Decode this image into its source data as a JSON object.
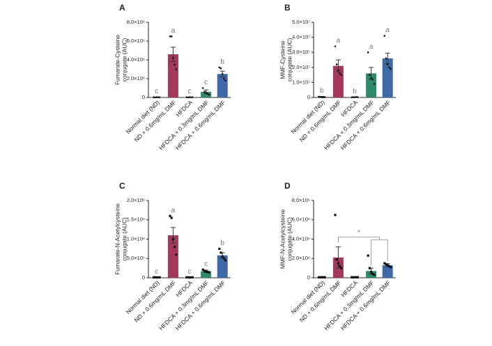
{
  "chart_data": [
    {
      "type": "bar",
      "panel": "A",
      "ylabel": [
        "Fumarate-Cysteine",
        "conjugate (AUC)"
      ],
      "categories": [
        "Normal diet (ND)",
        "ND + 0.6mg/mL DMF",
        "HFDCA",
        "HFDCA + 0.3mg/mL DMF",
        "HFDCA + 0.6mg/mL DMF"
      ],
      "values": [
        20000,
        4600000,
        20000,
        600000,
        2500000
      ],
      "errors": [
        5000,
        750000,
        5000,
        200000,
        300000
      ],
      "points": [
        [
          20000,
          10000,
          30000,
          15000,
          25000
        ],
        [
          6500000,
          6500000,
          4200000,
          3500000,
          3000000
        ],
        [
          20000,
          10000,
          30000,
          15000,
          25000
        ],
        [
          1000000,
          600000,
          500000,
          400000,
          300000
        ],
        [
          3200000,
          3100000,
          2500000,
          2000000,
          1800000
        ]
      ],
      "letters": [
        "c",
        "a",
        "c",
        "c",
        "b"
      ],
      "colors": [
        "#e07b2a",
        "#a3385a",
        "#d8833a",
        "#2e8b6a",
        "#3d6aa6"
      ],
      "marker": "circle",
      "ylim": [
        0,
        8000000
      ],
      "yticks": [
        0,
        {
          "value": 2000000,
          "label": "2.0×10⁶"
        },
        {
          "value": 4000000,
          "label": "4.0×10⁶"
        },
        {
          "value": 6000000,
          "label": "6.0×10⁶"
        },
        {
          "value": 8000000,
          "label": "8.0×10⁶"
        }
      ]
    },
    {
      "type": "bar",
      "panel": "B",
      "ylabel": [
        "MMF-Cysteine",
        "conjugate (AUC)"
      ],
      "categories": [
        "Normal diet (ND)",
        "ND + 0.6mg/mL DMF",
        "HFDCA",
        "HFDCA + 0.3mg/mL DMF",
        "HFDCA + 0.6mg/mL DMF"
      ],
      "values": [
        500000,
        21000000,
        200000,
        16000000,
        26000000
      ],
      "errors": [
        200000,
        4000000,
        100000,
        4000000,
        3500000
      ],
      "points": [
        [
          500000,
          300000,
          200000,
          100000,
          200000
        ],
        [
          34000000,
          22000000,
          18000000,
          16000000,
          15000000
        ],
        [
          100000,
          200000,
          100000,
          300000,
          200000
        ],
        [
          30000000,
          15000000,
          13000000,
          12000000,
          9000000
        ],
        [
          41000000,
          26000000,
          22000000,
          20000000,
          19000000
        ]
      ],
      "letters": [
        "b",
        "a",
        "b",
        "a",
        "a"
      ],
      "colors": [
        "#e07b2a",
        "#a3385a",
        "#d8833a",
        "#2e8b6a",
        "#3d6aa6"
      ],
      "marker": "circle",
      "ylim": [
        0,
        50000000
      ],
      "yticks": [
        0,
        {
          "value": 10000000,
          "label": "1.0×10⁷"
        },
        {
          "value": 20000000,
          "label": "2.0×10⁷"
        },
        {
          "value": 30000000,
          "label": "3.0×10⁷"
        },
        {
          "value": 40000000,
          "label": "4.0×10⁷"
        },
        {
          "value": 50000000,
          "label": "5.0×10⁷"
        }
      ]
    },
    {
      "type": "bar",
      "panel": "C",
      "ylabel": [
        "Fumarate-N-Acetylcysteine",
        "conjugate (AUC)"
      ],
      "categories": [
        "Normal diet (ND)",
        "ND + 0.6mg/mL DMF",
        "HFDCA",
        "HFDCA + 0.3mg/mL DMF",
        "HFDCA + 0.6mg/mL DMF"
      ],
      "values": [
        10000,
        1100000,
        10000,
        170000,
        580000
      ],
      "errors": [
        3000,
        200000,
        3000,
        30000,
        70000
      ],
      "points": [
        [
          10000,
          12000,
          8000,
          10000,
          11000
        ],
        [
          1600000,
          1550000,
          1000000,
          800000,
          600000
        ],
        [
          10000,
          12000,
          8000,
          10000,
          11000
        ],
        [
          210000,
          180000,
          160000,
          150000,
          140000
        ],
        [
          750000,
          650000,
          550000,
          500000,
          450000
        ]
      ],
      "letters": [
        "c",
        "a",
        "c",
        "c",
        "b"
      ],
      "colors": [
        "#e07b2a",
        "#a3385a",
        "#d8833a",
        "#2e8b6a",
        "#3d6aa6"
      ],
      "marker": "square",
      "ylim": [
        0,
        2000000
      ],
      "yticks": [
        0,
        {
          "value": 500000,
          "label": "5.0×10⁵"
        },
        {
          "value": 1000000,
          "label": "1.0×10⁶"
        },
        {
          "value": 1500000,
          "label": "1.5×10⁶"
        },
        {
          "value": 2000000,
          "label": "2.0×10⁶"
        }
      ]
    },
    {
      "type": "bar",
      "panel": "D",
      "ylabel": [
        "MMF-N-Acetylcysteine",
        "conjugate (AUC)"
      ],
      "categories": [
        "Normal diet (ND)",
        "ND + 0.6mg/mL DMF",
        "HFDCA",
        "HFDCA + 0.3mg/mL DMF",
        "HFDCA + 0.6mg/mL DMF"
      ],
      "values": [
        50000,
        2100000,
        50000,
        700000,
        1300000
      ],
      "errors": [
        10000,
        1100000,
        10000,
        300000,
        150000
      ],
      "points": [
        [
          50000,
          40000,
          60000,
          50000,
          50000
        ],
        [
          6500000,
          1900000,
          1500000,
          1200000,
          1000000
        ],
        [
          50000,
          40000,
          60000,
          50000,
          50000
        ],
        [
          2300000,
          1000000,
          600000,
          400000,
          300000
        ],
        [
          1500000,
          1400000,
          1300000,
          1200000,
          1100000
        ]
      ],
      "significance": {
        "label": "*",
        "from": 1,
        "to": [
          3,
          4
        ]
      },
      "colors": [
        "#e07b2a",
        "#a3385a",
        "#d8833a",
        "#2e8b6a",
        "#3d6aa6"
      ],
      "marker": "square",
      "ylim": [
        0,
        8000000
      ],
      "yticks": [
        0,
        {
          "value": 2000000,
          "label": "2.0×10⁶"
        },
        {
          "value": 4000000,
          "label": "4.0×10⁶"
        },
        {
          "value": 6000000,
          "label": "6.0×10⁶"
        },
        {
          "value": 8000000,
          "label": "8.0×10⁶"
        }
      ]
    }
  ]
}
